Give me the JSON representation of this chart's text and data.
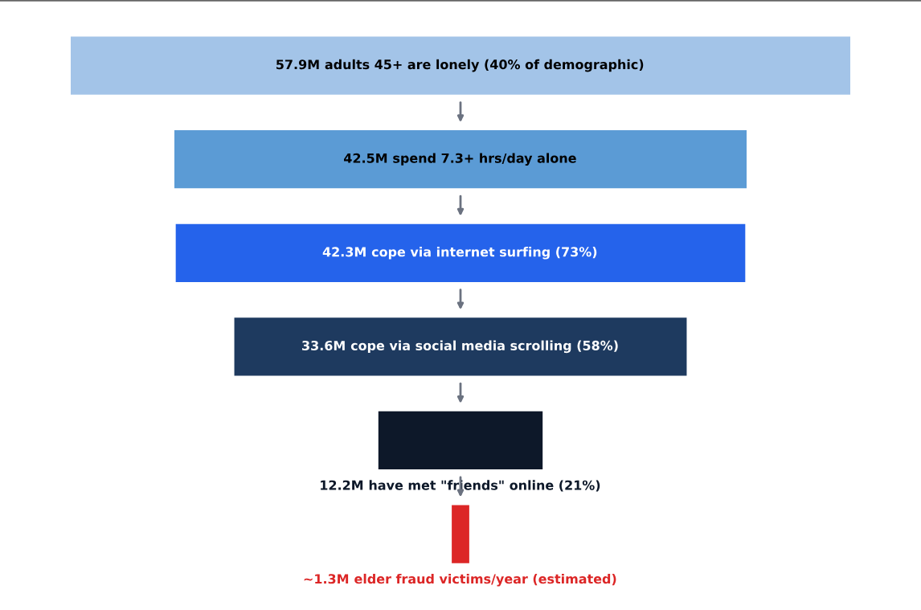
{
  "chart_data": {
    "type": "other",
    "categories": [
      "adults 45+ are lonely (40% of demographic)",
      "spend 7.3+ hrs/day alone",
      "cope via internet surfing (73%)",
      "cope via social media scrolling (58%)",
      "have met \"friends\" online (21%)",
      "elder fraud victims/year (estimated)"
    ],
    "values": [
      57.9,
      42.5,
      42.3,
      33.6,
      12.2,
      1.3
    ],
    "value_labels": [
      "57.9M",
      "42.5M",
      "42.3M",
      "33.6M",
      "12.2M",
      "~1.3M"
    ],
    "colors": [
      "#a3c4e8",
      "#5b9bd5",
      "#2563eb",
      "#1e3a5f",
      "#0d1829",
      "#dc2626"
    ]
  }
}
